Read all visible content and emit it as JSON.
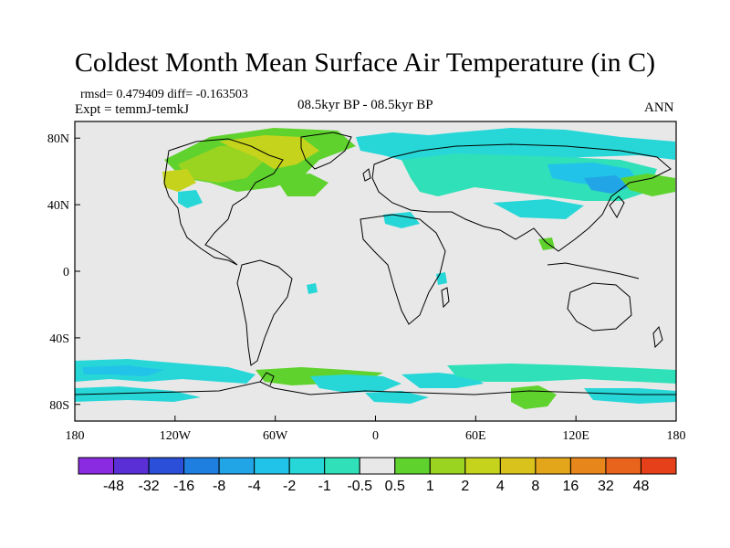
{
  "title": "Coldest Month Mean Surface Air Temperature (in C)",
  "stats": "rmsd= 0.479409  diff= -0.163503",
  "experiment": "Expt = temmJ-temkJ",
  "period": "08.5kyr BP - 08.5kyr BP",
  "season": "ANN",
  "map": {
    "ocean_color": "#e8e8e8",
    "x_ticks": [
      "180",
      "120W",
      "60W",
      "0",
      "60E",
      "120E",
      "180"
    ],
    "y_ticks": [
      "80N",
      "40N",
      "0",
      "40S",
      "80S"
    ]
  },
  "colorbar": {
    "colors": [
      "#8a2be2",
      "#5a2fd6",
      "#2b4fd8",
      "#1f7fe0",
      "#22a5e6",
      "#22c3e8",
      "#27d7d8",
      "#2fe0b8",
      "#e8e8e8",
      "#5fd22e",
      "#9bd321",
      "#c6d31c",
      "#d9c21b",
      "#e3a51a",
      "#e7861a",
      "#e8631b",
      "#e5401a"
    ],
    "labels": [
      "-48",
      "-32",
      "-16",
      "-8",
      "-4",
      "-2",
      "-1",
      "-0.5",
      "0.5",
      "1",
      "2",
      "4",
      "8",
      "16",
      "32",
      "48"
    ]
  },
  "anomaly_colors": {
    "cyan": "#27d7d8",
    "light_blue": "#22c3e8",
    "sky_blue": "#22a5e6",
    "teal": "#2fe0b8",
    "green": "#5fd22e",
    "yellow_green": "#9bd321",
    "olive": "#c6d31c"
  }
}
